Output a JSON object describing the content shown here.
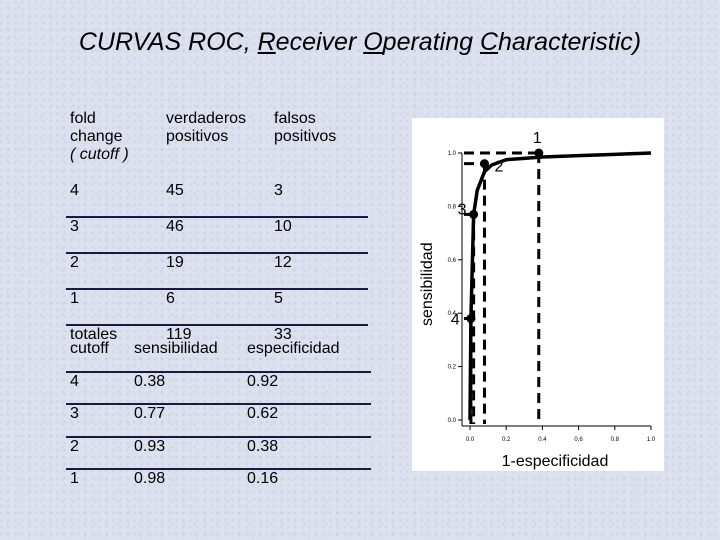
{
  "title": {
    "pre": "CURVAS ROC, ",
    "r": "R",
    "eceiver": "eceiver ",
    "o": "O",
    "perating": "perating ",
    "c": "C",
    "haracteristic": "haracteristic)"
  },
  "table1": {
    "headers": [
      "fold change ( cutoff )",
      "verdaderos positivos",
      "falsos positivos"
    ],
    "header_lines": [
      [
        "fold",
        "change",
        "( cutoff )"
      ],
      [
        "verdaderos",
        "positivos"
      ],
      [
        "falsos",
        "positivos"
      ]
    ],
    "rows": [
      [
        "4",
        "45",
        "3"
      ],
      [
        "3",
        "46",
        "10"
      ],
      [
        "2",
        "19",
        "12"
      ],
      [
        "1",
        "6",
        "5"
      ],
      [
        "totales",
        "119",
        "33"
      ]
    ]
  },
  "table2": {
    "headers": [
      "cutoff",
      "sensibilidad",
      "especificidad"
    ],
    "rows": [
      [
        "4",
        "0.38",
        "0.92"
      ],
      [
        "3",
        "0.77",
        "0.62"
      ],
      [
        "2",
        "0.93",
        "0.38"
      ],
      [
        "1",
        "0.98",
        "0.16"
      ]
    ]
  },
  "chart_data": {
    "type": "line",
    "xlabel": "1-especificidad",
    "ylabel": "sensibilidad",
    "xlim": [
      0,
      1
    ],
    "ylim": [
      0,
      1
    ],
    "xticks": [
      "0.0",
      "0.2",
      "0.4",
      "0.6",
      "0.8",
      "1.0"
    ],
    "yticks": [
      "0.0",
      "0.2",
      "0.4",
      "0.6",
      "0.8",
      "1.0"
    ],
    "curve": {
      "x": [
        0,
        0.005,
        0.02,
        0.04,
        0.08,
        0.12,
        0.2,
        0.3,
        0.4,
        0.6,
        0.8,
        1.0
      ],
      "y": [
        0,
        0.38,
        0.77,
        0.86,
        0.93,
        0.955,
        0.975,
        0.98,
        0.985,
        0.99,
        0.995,
        1.0
      ]
    },
    "points": [
      {
        "label": "1",
        "x": 0.38,
        "y": 1.0
      },
      {
        "label": "2",
        "x": 0.08,
        "y": 0.96
      },
      {
        "label": "3",
        "x": 0.02,
        "y": 0.77
      },
      {
        "label": "4",
        "x": 0.005,
        "y": 0.38
      }
    ],
    "grid": false,
    "line_color": "#000000"
  }
}
